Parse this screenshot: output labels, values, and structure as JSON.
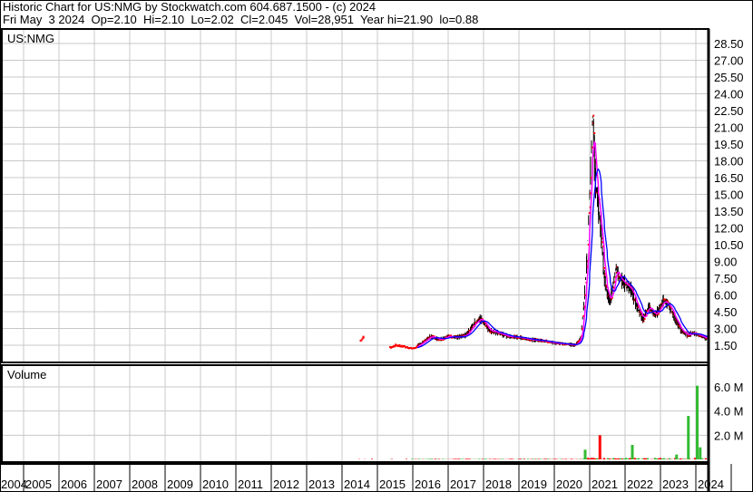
{
  "header": {
    "title": "Historic Chart for US:NMG by Stockwatch.com 604.687.1500 - (c) 2024",
    "quote": "Fri May  3 2024  Op=2.10  Hi=2.10  Lo=2.02  Cl=2.045  Vol=28,951  Year hi=21.90  lo=0.88"
  },
  "chart_data": [
    {
      "type": "line",
      "title": "US:NMG",
      "ylim": [
        0.5,
        29.5
      ],
      "yticks": [
        "1.50",
        "3.00",
        "4.50",
        "6.00",
        "7.50",
        "9.00",
        "10.50",
        "12.00",
        "13.50",
        "15.00",
        "16.50",
        "18.00",
        "19.50",
        "21.00",
        "22.50",
        "24.00",
        "25.50",
        "27.00",
        "28.50"
      ],
      "xticks": [
        "2004",
        "2005",
        "2006",
        "2007",
        "2008",
        "2009",
        "2010",
        "2011",
        "2012",
        "2013",
        "2014",
        "2015",
        "2016",
        "2017",
        "2018",
        "2019",
        "2020",
        "2021",
        "2022",
        "2023",
        "2024"
      ],
      "grid": true,
      "colors": {
        "bars": "#000000",
        "close": "#ff0000",
        "ma_short": "#ff00ff",
        "ma_long": "#0000ff"
      },
      "series": [
        {
          "x": [
            "2014-07",
            "2014-08",
            "2015-05",
            "2015-07",
            "2015-09",
            "2016-01",
            "2016-04",
            "2016-07",
            "2016-10",
            "2017-01",
            "2017-04",
            "2017-07",
            "2017-10",
            "2017-12",
            "2018-03",
            "2018-06",
            "2018-09",
            "2019-01",
            "2019-05",
            "2019-09",
            "2020-01",
            "2020-05",
            "2020-08",
            "2020-10",
            "2020-11",
            "2020-12",
            "2021-01",
            "2021-02",
            "2021-03",
            "2021-04",
            "2021-05",
            "2021-06",
            "2021-07",
            "2021-08",
            "2021-10",
            "2021-11",
            "2022-01",
            "2022-03",
            "2022-05",
            "2022-07",
            "2022-09",
            "2022-11",
            "2022-12",
            "2023-02",
            "2023-04",
            "2023-06",
            "2023-08",
            "2023-10",
            "2023-12",
            "2024-02",
            "2024-05"
          ],
          "values": [
            1.9,
            2.2,
            1.3,
            1.5,
            1.4,
            1.2,
            1.7,
            2.3,
            2.0,
            2.3,
            2.2,
            2.4,
            3.5,
            3.9,
            2.8,
            2.6,
            2.3,
            2.2,
            2.0,
            1.9,
            1.7,
            1.6,
            1.5,
            2.2,
            5.0,
            9.0,
            15.0,
            21.9,
            16.0,
            14.0,
            11.0,
            7.5,
            6.0,
            5.5,
            8.5,
            7.5,
            7.0,
            6.5,
            5.0,
            3.8,
            5.0,
            4.2,
            4.5,
            5.5,
            5.0,
            3.8,
            2.8,
            2.4,
            2.6,
            2.4,
            2.05
          ]
        }
      ]
    },
    {
      "type": "bar",
      "title": "Volume",
      "yticks": [
        "2.0 M",
        "4.0 M",
        "6.0 M"
      ],
      "ylim": [
        0,
        7.0
      ],
      "unit": "M",
      "colors": {
        "up": "#33bb33",
        "down": "#ff0000"
      },
      "spikes": [
        {
          "x": "2020-11",
          "value": 0.8,
          "color": "up"
        },
        {
          "x": "2021-04",
          "value": 2.0,
          "color": "down"
        },
        {
          "x": "2022-03",
          "value": 1.2,
          "color": "up"
        },
        {
          "x": "2023-06",
          "value": 0.4,
          "color": "up"
        },
        {
          "x": "2023-10",
          "value": 3.6,
          "color": "up"
        },
        {
          "x": "2024-01",
          "value": 6.1,
          "color": "up"
        },
        {
          "x": "2024-02",
          "value": 1.0,
          "color": "up"
        }
      ]
    }
  ]
}
